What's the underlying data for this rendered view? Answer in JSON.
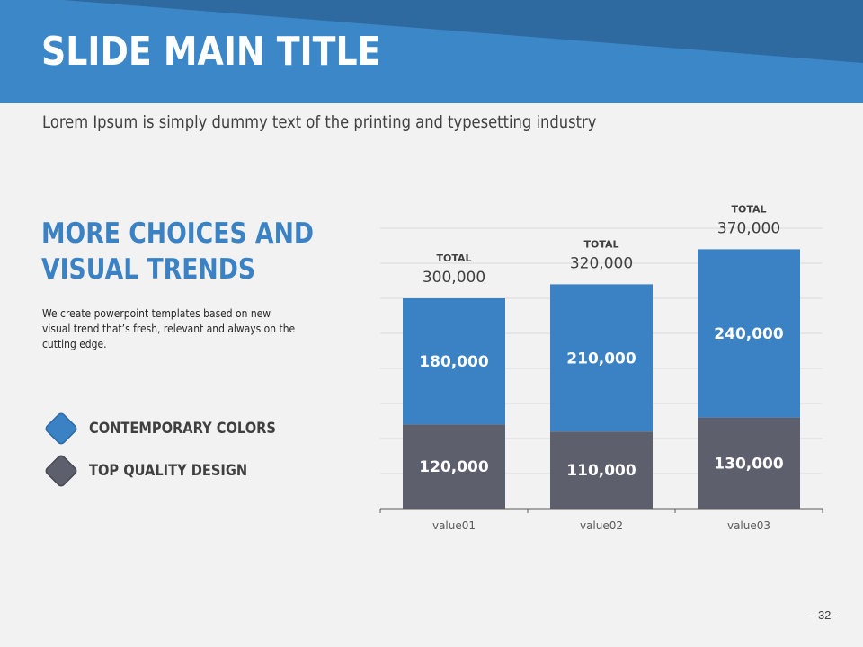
{
  "slide": {
    "title": "SLIDE MAIN TITLE",
    "subtitle": "Lorem Ipsum is simply dummy text of the printing and typesetting industry",
    "page_number": "- 32 -"
  },
  "section": {
    "heading_line1": "MORE CHOICES AND",
    "heading_line2": "VISUAL TRENDS",
    "body": "We create powerpoint templates based on new visual trend that’s fresh, relevant and always on the cutting edge."
  },
  "legend": [
    {
      "label": "CONTEMPORARY COLORS",
      "color": "#3b82c4"
    },
    {
      "label": "TOP QUALITY DESIGN",
      "color": "#5d5f6c"
    }
  ],
  "colors": {
    "header_dark": "#2e6aa0",
    "header_light": "#3b87c8",
    "accent_blue": "#3b82c4",
    "accent_gray": "#5d5f6c"
  },
  "chart_data": {
    "type": "bar",
    "stacked": true,
    "categories": [
      "value01",
      "value02",
      "value03"
    ],
    "series": [
      {
        "values": [
          120000,
          110000,
          130000
        ],
        "color": "#5d5f6c",
        "labels": [
          "120,000",
          "110,000",
          "130,000"
        ]
      },
      {
        "values": [
          180000,
          210000,
          240000
        ],
        "color": "#3b82c4",
        "labels": [
          "180,000",
          "210,000",
          "240,000"
        ]
      }
    ],
    "totals": [
      300000,
      320000,
      370000
    ],
    "total_label": "TOTAL",
    "total_texts": [
      "300,000",
      "320,000",
      "370,000"
    ],
    "ylim": [
      0,
      400000
    ],
    "grid": true,
    "title": "",
    "xlabel": "",
    "ylabel": ""
  }
}
